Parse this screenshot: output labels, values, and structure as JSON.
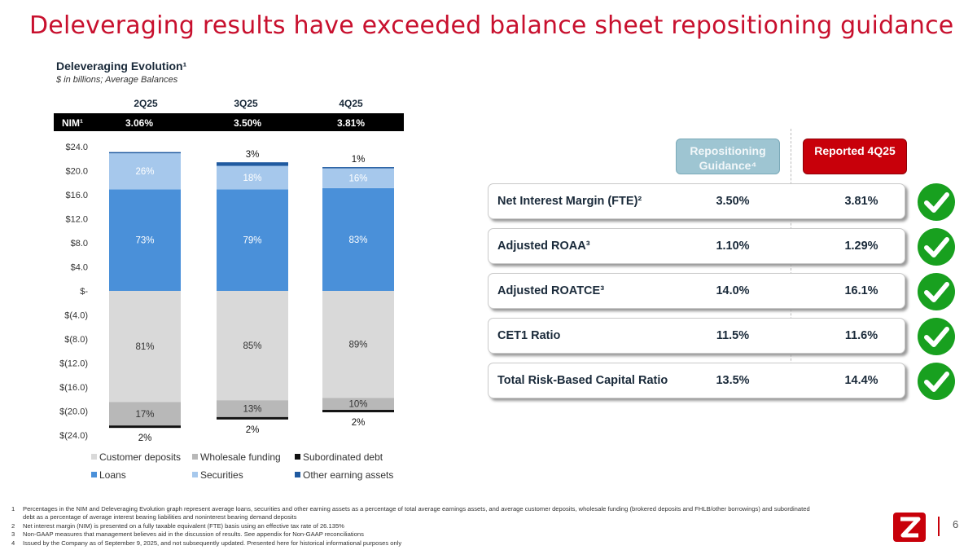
{
  "title": "Deleveraging results have exceeded balance sheet repositioning guidance",
  "chart_title": "Deleveraging Evolution¹",
  "chart_subtitle": "$ in billions; Average Balances",
  "nim": {
    "label": "NIM¹",
    "values": [
      "3.06%",
      "3.50%",
      "3.81%"
    ]
  },
  "chart_data": {
    "type": "bar",
    "stacked": true,
    "categories": [
      "2Q25",
      "3Q25",
      "4Q25"
    ],
    "ylim": [
      -24,
      24
    ],
    "yticks": [
      24,
      20,
      16,
      12,
      8,
      4,
      0,
      -4,
      -8,
      -12,
      -16,
      -20,
      -24
    ],
    "ytick_labels": [
      "$24.0",
      "$20.0",
      "$16.0",
      "$12.0",
      "$8.0",
      "$4.0",
      "$-",
      "$(4.0)",
      "$(8.0)",
      "$(12.0)",
      "$(16.0)",
      "$(20.0)",
      "$(24.0)"
    ],
    "grid": false,
    "legend_position": "bottom",
    "series": [
      {
        "name": "Loans",
        "color": "#4a90d9",
        "values": [
          16.9,
          16.9,
          17.1
        ],
        "labels": [
          "73%",
          "79%",
          "83%"
        ]
      },
      {
        "name": "Securities",
        "color": "#a6c8ec",
        "values": [
          6.0,
          3.9,
          3.3
        ],
        "labels": [
          "26%",
          "18%",
          "16%"
        ]
      },
      {
        "name": "Other earning assets",
        "color": "#1f5aa0",
        "values": [
          0.2,
          0.6,
          0.2
        ],
        "labels": [
          "",
          "3%",
          "1%"
        ]
      },
      {
        "name": "Customer deposits",
        "color": "#d9d9d9",
        "values": [
          -18.5,
          -18.2,
          -17.8
        ],
        "labels": [
          "81%",
          "85%",
          "89%"
        ]
      },
      {
        "name": "Wholesale funding",
        "color": "#b8b8b8",
        "values": [
          -3.9,
          -2.8,
          -2.0
        ],
        "labels": [
          "17%",
          "13%",
          "10%"
        ]
      },
      {
        "name": "Subordinated debt",
        "color": "#111111",
        "values": [
          -0.4,
          -0.4,
          -0.4
        ],
        "labels": [
          "2%",
          "2%",
          "2%"
        ]
      }
    ]
  },
  "legend": [
    {
      "name": "Customer deposits",
      "color": "#d9d9d9"
    },
    {
      "name": "Wholesale funding",
      "color": "#b8b8b8"
    },
    {
      "name": "Subordinated debt",
      "color": "#111111"
    },
    {
      "name": "Loans",
      "color": "#4a90d9"
    },
    {
      "name": "Securities",
      "color": "#a6c8ec"
    },
    {
      "name": "Other earning assets",
      "color": "#1f5aa0"
    }
  ],
  "table": {
    "guidance_header": "Repositioning Guidance⁴",
    "reported_header": "Reported 4Q25",
    "rows": [
      {
        "label": "Net Interest Margin (FTE)²",
        "guidance": "3.50%",
        "reported": "3.81%"
      },
      {
        "label": "Adjusted ROAA³",
        "guidance": "1.10%",
        "reported": "1.29%"
      },
      {
        "label": "Adjusted ROATCE³",
        "guidance": "14.0%",
        "reported": "16.1%"
      },
      {
        "label": "CET1 Ratio",
        "guidance": "11.5%",
        "reported": "11.6%"
      },
      {
        "label": "Total Risk-Based Capital Ratio",
        "guidance": "13.5%",
        "reported": "14.4%"
      }
    ]
  },
  "footnotes": [
    {
      "num": "1",
      "text": "Percentages in the NIM and Deleveraging Evolution graph represent average loans, securities and other earning assets as a percentage of total average earnings assets, and average customer deposits, wholesale funding (brokered deposits and FHLB/other borrowings) and subordinated debt as a percentage of average interest bearing liabilities and noninterest bearing demand deposits"
    },
    {
      "num": "2",
      "text": "Net interest margin (NIM) is presented on a fully taxable equivalent (FTE) basis using an effective tax rate of 26.135%"
    },
    {
      "num": "3",
      "text": "Non-GAAP measures that management believes aid in the discussion of results. See appendix for Non-GAAP reconciliations"
    },
    {
      "num": "4",
      "text": "Issued by the Company as of September 9, 2025, and not subsequently updated. Presented here for historical informational purposes only"
    }
  ],
  "page_number": "6",
  "colors": {
    "brand_red": "#c8102e",
    "check_green": "#18a01f",
    "guidance_blue": "#9ec5d2"
  }
}
